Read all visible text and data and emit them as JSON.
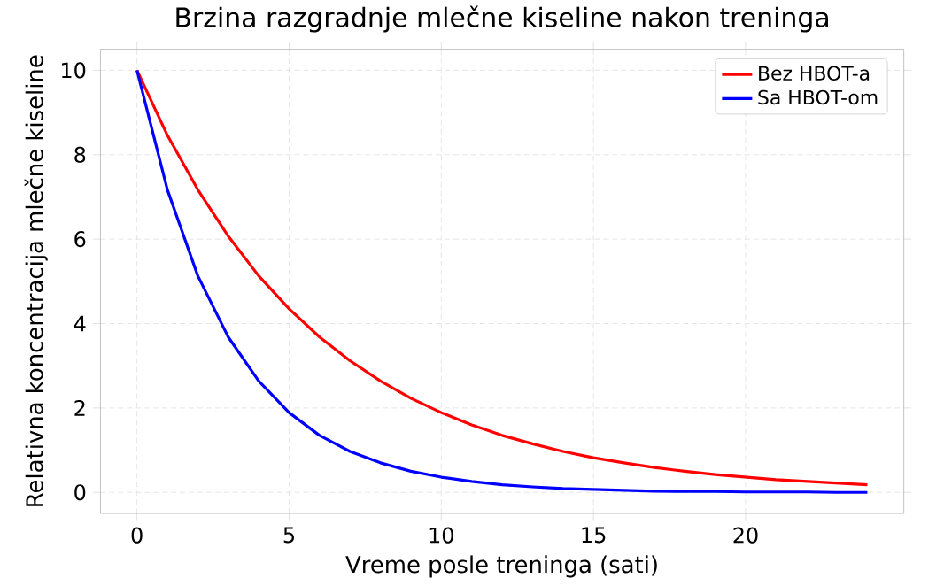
{
  "chart_data": {
    "type": "line",
    "title": "Brzina razgradnje mlečne kiseline nakon treninga",
    "xlabel": "Vreme posle treninga (sati)",
    "ylabel": "Relativna koncentracija mlečne kiseline",
    "x": [
      0,
      1,
      2,
      3,
      4,
      5,
      6,
      7,
      8,
      9,
      10,
      11,
      12,
      13,
      14,
      15,
      16,
      17,
      18,
      19,
      20,
      21,
      22,
      23,
      24
    ],
    "series": [
      {
        "name": "Bez HBOT-a",
        "color": "#ff0000",
        "values": [
          10,
          8.46,
          7.17,
          6.07,
          5.13,
          4.35,
          3.68,
          3.12,
          2.64,
          2.23,
          1.89,
          1.6,
          1.35,
          1.15,
          0.97,
          0.82,
          0.7,
          0.59,
          0.5,
          0.42,
          0.36,
          0.3,
          0.26,
          0.22,
          0.18
        ]
      },
      {
        "name": "Sa HBOT-om",
        "color": "#0000ff",
        "values": [
          10,
          7.17,
          5.13,
          3.68,
          2.64,
          1.89,
          1.35,
          0.97,
          0.7,
          0.5,
          0.36,
          0.26,
          0.18,
          0.13,
          0.09,
          0.07,
          0.05,
          0.03,
          0.02,
          0.02,
          0.01,
          0.01,
          0.01,
          0,
          0
        ]
      }
    ],
    "xlim": [
      -1.2,
      25.2
    ],
    "ylim": [
      -0.5,
      10.5
    ],
    "xticks": [
      0,
      5,
      10,
      15,
      20
    ],
    "yticks": [
      0,
      2,
      4,
      6,
      8,
      10
    ],
    "grid": true,
    "legend": "top right",
    "marker": "none",
    "line_style": "solid"
  }
}
